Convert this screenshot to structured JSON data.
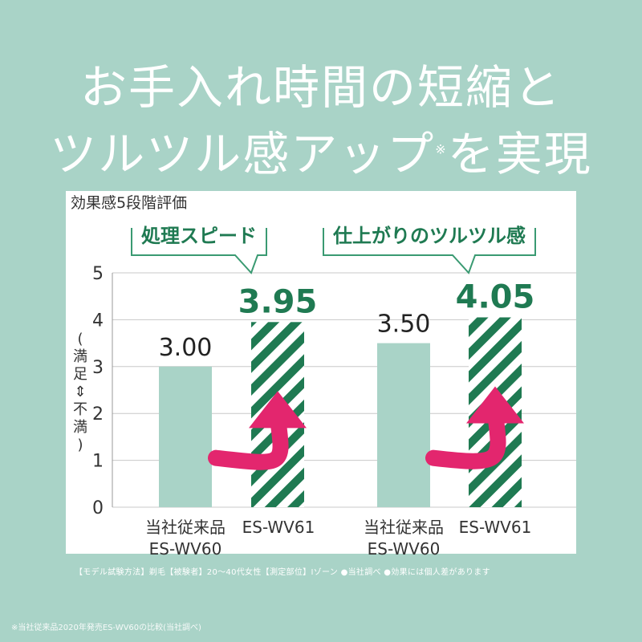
{
  "headline": {
    "line1": "お手入れ時間の短縮と",
    "line2": "ツルツル感アップ",
    "line2_mark": "※",
    "line2_tail": "を実現"
  },
  "chart_panel_caption": "効果感5段階評価",
  "chart_data": [
    {
      "type": "bar",
      "group_title": "処理スピード",
      "categories": [
        "当社従来品\nES-WV60",
        "ES-WV61"
      ],
      "values": [
        3.0,
        3.95
      ],
      "value_labels": [
        "3.00",
        "3.95"
      ],
      "ylabel": "(満足⇕不満)",
      "ylim": [
        0,
        5
      ],
      "yticks": [
        "0",
        "1",
        "2",
        "3",
        "4",
        "5"
      ]
    },
    {
      "type": "bar",
      "group_title": "仕上がりのツルツル感",
      "categories": [
        "当社従来品\nES-WV60",
        "ES-WV61"
      ],
      "values": [
        3.5,
        4.05
      ],
      "value_labels": [
        "3.50",
        "4.05"
      ],
      "ylabel": "(満足⇕不満)",
      "ylim": [
        0,
        5
      ],
      "yticks": [
        "0",
        "1",
        "2",
        "3",
        "4",
        "5"
      ]
    }
  ],
  "colors": {
    "background": "#a9d3c7",
    "old_bar": "#a9d3c7",
    "new_bar_stripe": "#1f7a52",
    "highlight_text": "#1f7a52",
    "arrow": "#e3266e",
    "headline": "#ffffff"
  },
  "footnote": "【モデル試験方法】剃毛【被験者】20〜40代女性【測定部位】Iゾーン ●当社調べ ●効果には個人差があります",
  "source": "※当社従来品2020年発売ES-WV60の比較(当社調べ)"
}
